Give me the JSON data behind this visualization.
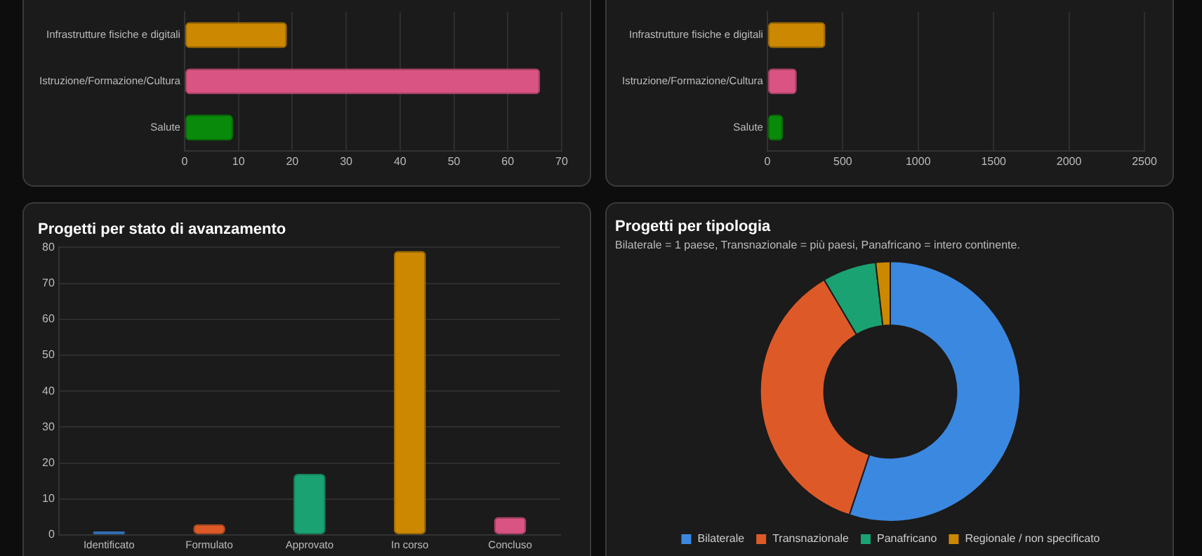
{
  "chart_data": [
    {
      "type": "bar",
      "orientation": "horizontal",
      "categories": [
        "Infrastrutture fisiche e digitali",
        "Istruzione/Formazione/Cultura",
        "Salute"
      ],
      "values": [
        19,
        66,
        9
      ],
      "colors": [
        "#cc8800",
        "#d95383",
        "#0a8a0a"
      ],
      "xlim": [
        0,
        70
      ],
      "xticks": [
        0,
        10,
        20,
        30,
        40,
        50,
        60,
        70
      ],
      "grid": "x"
    },
    {
      "type": "bar",
      "orientation": "horizontal",
      "categories": [
        "Infrastrutture fisiche e digitali",
        "Istruzione/Formazione/Cultura",
        "Salute"
      ],
      "values": [
        385,
        195,
        105
      ],
      "colors": [
        "#cc8800",
        "#d95383",
        "#0a8a0a"
      ],
      "xlim": [
        0,
        2500
      ],
      "xticks": [
        0,
        500,
        1000,
        1500,
        2000,
        2500
      ],
      "grid": "x"
    },
    {
      "type": "bar",
      "title": "Progetti per stato di avanzamento",
      "categories": [
        "Identificato",
        "Formulato",
        "Approvato",
        "In corso",
        "Concluso"
      ],
      "values": [
        1,
        3,
        17,
        79,
        5
      ],
      "colors": [
        "#3b88e0",
        "#dd5a28",
        "#1aa273",
        "#cc8800",
        "#d95383"
      ],
      "ylim": [
        0,
        80
      ],
      "yticks": [
        0,
        10,
        20,
        30,
        40,
        50,
        60,
        70,
        80
      ],
      "grid": "y"
    },
    {
      "type": "donut",
      "title": "Progetti per tipologia",
      "subtitle": "Bilaterale = 1 paese, Transnazionale = più paesi, Panafricano = intero continente.",
      "categories": [
        "Bilaterale",
        "Transnazionale",
        "Panafricano",
        "Regionale / non specificato"
      ],
      "values": [
        55.1,
        36.4,
        6.7,
        1.8
      ],
      "colors": [
        "#3b88e0",
        "#dd5a28",
        "#1aa273",
        "#cc8800"
      ],
      "legend": "bottom"
    }
  ]
}
